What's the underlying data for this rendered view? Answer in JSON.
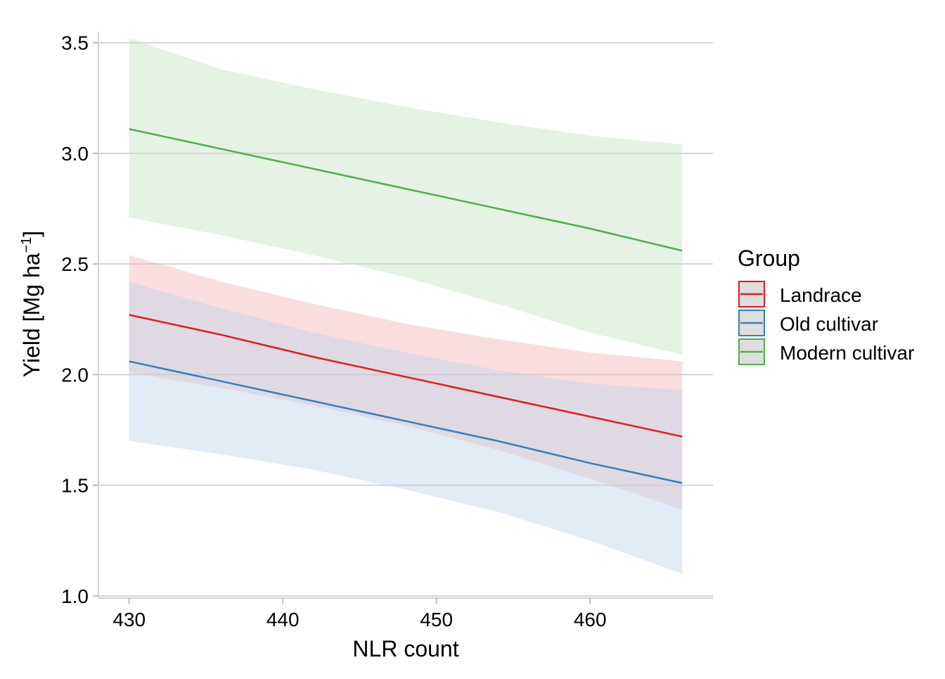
{
  "chart_data": {
    "type": "line",
    "xlabel": "NLR count",
    "ylabel": "Yield [Mg ha",
    "ylabel_superscript": "−1",
    "ylabel_close": "]",
    "xlim": [
      428,
      468
    ],
    "ylim": [
      0.99,
      3.55
    ],
    "x_ticks": [
      430,
      440,
      450,
      460
    ],
    "x_tick_labels": [
      "430",
      "440",
      "450",
      "460"
    ],
    "y_ticks": [
      1.0,
      1.5,
      2.0,
      2.5,
      3.0,
      3.5
    ],
    "y_tick_labels": [
      "1.0",
      "1.5",
      "2.0",
      "2.5",
      "3.0",
      "3.5"
    ],
    "grid": "horizontal major",
    "legend": {
      "title": "Group",
      "position": "right"
    },
    "series": [
      {
        "name": "Landrace",
        "color": "#E41A1C",
        "fill": "#F4B6B8",
        "x": [
          430,
          436,
          442,
          448,
          454,
          460,
          466
        ],
        "y": [
          2.27,
          2.18,
          2.08,
          1.99,
          1.9,
          1.81,
          1.72
        ],
        "lower": [
          2.01,
          1.94,
          1.86,
          1.77,
          1.66,
          1.53,
          1.39
        ],
        "upper": [
          2.54,
          2.42,
          2.32,
          2.23,
          2.16,
          2.1,
          2.06
        ]
      },
      {
        "name": "Old cultivar",
        "color": "#377EB8",
        "fill": "#BFD3EA",
        "x": [
          430,
          436,
          442,
          448,
          454,
          460,
          466
        ],
        "y": [
          2.06,
          1.97,
          1.88,
          1.79,
          1.7,
          1.6,
          1.51
        ],
        "lower": [
          1.7,
          1.64,
          1.57,
          1.48,
          1.38,
          1.25,
          1.1
        ],
        "upper": [
          2.42,
          2.3,
          2.19,
          2.1,
          2.02,
          1.96,
          1.93
        ]
      },
      {
        "name": "Modern cultivar",
        "color": "#4DAF4A",
        "fill": "#C6E5C3",
        "x": [
          430,
          436,
          442,
          448,
          454,
          460,
          466
        ],
        "y": [
          3.11,
          3.02,
          2.93,
          2.84,
          2.75,
          2.66,
          2.56
        ],
        "lower": [
          2.71,
          2.63,
          2.54,
          2.44,
          2.32,
          2.19,
          2.09
        ],
        "upper": [
          3.52,
          3.38,
          3.29,
          3.21,
          3.14,
          3.08,
          3.04
        ]
      }
    ]
  }
}
